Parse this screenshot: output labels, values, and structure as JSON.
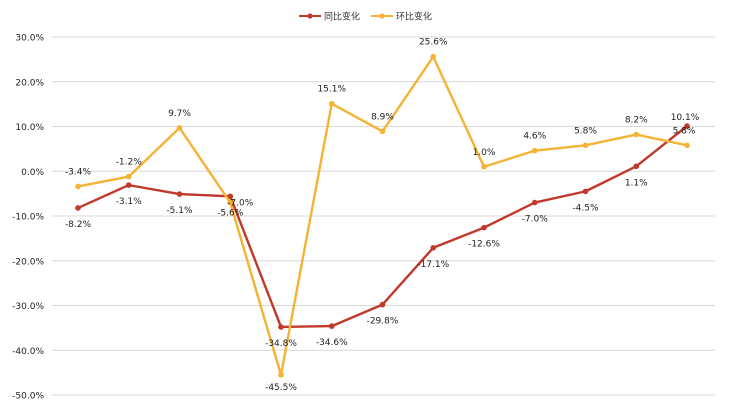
{
  "chart_data": {
    "type": "line",
    "ylim": [
      -50,
      30
    ],
    "y_ticks": [
      30,
      20,
      10,
      0,
      -10,
      -20,
      -30,
      -40,
      -50
    ],
    "y_tick_labels": [
      "30.0%",
      "20.0%",
      "10.0%",
      "0.0%",
      "-10.0%",
      "-20.0%",
      "-30.0%",
      "-40.0%",
      "-50.0%"
    ],
    "grid": true,
    "legend_position": "top-center",
    "x": [
      1,
      2,
      3,
      4,
      5,
      6,
      7,
      8,
      9,
      10,
      11,
      12,
      13
    ],
    "series": [
      {
        "name": "同比变化",
        "color": "#c0392b",
        "values": [
          -8.2,
          -3.1,
          -5.1,
          -5.6,
          -34.8,
          -34.6,
          -29.8,
          -17.1,
          -12.6,
          -7.0,
          -4.5,
          1.1,
          10.1
        ],
        "labels": [
          "-8.2%",
          "-3.1%",
          "-5.1%",
          "-5.6%",
          "-34.8%",
          "-34.6%",
          "-29.8%",
          "-17.1%",
          "-12.6%",
          "-7.0%",
          "-4.5%",
          "1.1%",
          "10.1%"
        ]
      },
      {
        "name": "环比变化",
        "color": "#f5b335",
        "values": [
          -3.4,
          -1.2,
          9.7,
          -7.0,
          -45.5,
          15.1,
          8.9,
          25.6,
          1.0,
          4.6,
          5.8,
          8.2,
          5.8
        ],
        "labels": [
          "-3.4%",
          "-1.2%",
          "9.7%",
          "-7.0%",
          "-45.5%",
          "15.1%",
          "8.9%",
          "25.6%",
          "1.0%",
          "4.6%",
          "5.8%",
          "8.2%",
          "5.8%"
        ]
      }
    ]
  }
}
